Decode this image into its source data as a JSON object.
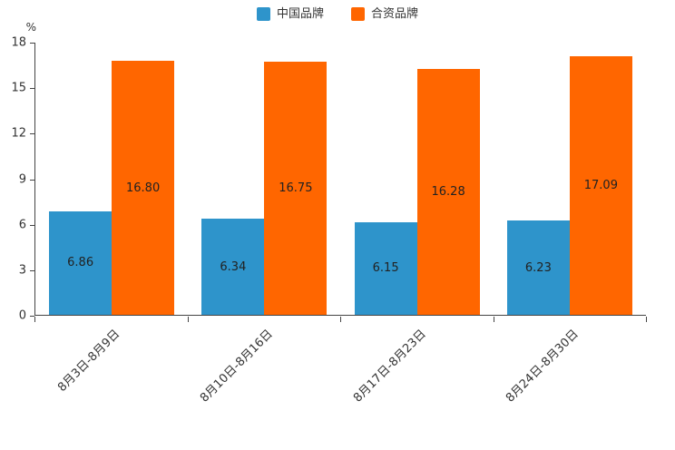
{
  "chart_data": {
    "type": "bar",
    "title": "",
    "xlabel": "",
    "ylabel": "%",
    "ylim": [
      0,
      18
    ],
    "yticks": [
      0,
      3,
      6,
      9,
      12,
      15,
      18
    ],
    "grid": false,
    "legend_position": "top",
    "categories": [
      "8月3日-8月9日",
      "8月10日-8月16日",
      "8月17日-8月23日",
      "8月24日-8月30日"
    ],
    "series": [
      {
        "name": "中国品牌",
        "color": "#2E94CB",
        "values": [
          6.86,
          6.34,
          6.15,
          6.23
        ],
        "labels": [
          "6.86",
          "6.34",
          "6.15",
          "6.23"
        ]
      },
      {
        "name": "合资品牌",
        "color": "#FF6600",
        "values": [
          16.8,
          16.75,
          16.28,
          17.09
        ],
        "labels": [
          "16.80",
          "16.75",
          "16.28",
          "17.09"
        ]
      }
    ]
  }
}
